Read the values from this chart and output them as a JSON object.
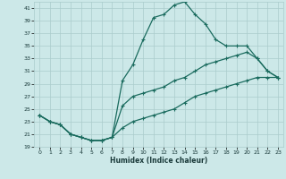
{
  "title": "",
  "xlabel": "Humidex (Indice chaleur)",
  "xlim": [
    -0.5,
    23.5
  ],
  "ylim": [
    19,
    42
  ],
  "xticks": [
    0,
    1,
    2,
    3,
    4,
    5,
    6,
    7,
    8,
    9,
    10,
    11,
    12,
    13,
    14,
    15,
    16,
    17,
    18,
    19,
    20,
    21,
    22,
    23
  ],
  "yticks": [
    19,
    21,
    23,
    25,
    27,
    29,
    31,
    33,
    35,
    37,
    39,
    41
  ],
  "bg_color": "#cce8e8",
  "grid_color": "#aacccc",
  "line_color": "#1a6b5e",
  "line1_x": [
    0,
    1,
    2,
    3,
    4,
    5,
    6,
    7,
    8,
    9,
    10,
    11,
    12,
    13,
    14,
    15,
    16,
    17,
    18,
    19,
    20,
    21,
    22,
    23
  ],
  "line1_y": [
    24,
    23,
    22.5,
    21,
    20.5,
    20,
    20,
    20.5,
    29.5,
    32,
    36,
    39.5,
    40,
    41.5,
    42,
    40,
    38.5,
    36,
    35,
    35,
    35,
    33,
    31,
    30
  ],
  "line2_x": [
    0,
    1,
    2,
    3,
    4,
    5,
    6,
    7,
    8,
    9,
    10,
    11,
    12,
    13,
    14,
    15,
    16,
    17,
    18,
    19,
    20,
    21,
    22,
    23
  ],
  "line2_y": [
    24,
    23,
    22.5,
    21,
    20.5,
    20,
    20,
    20.5,
    25.5,
    27,
    27.5,
    28,
    28.5,
    29.5,
    30,
    31,
    32,
    32.5,
    33,
    33.5,
    34,
    33,
    31,
    30
  ],
  "line3_x": [
    0,
    1,
    2,
    3,
    4,
    5,
    6,
    7,
    8,
    9,
    10,
    11,
    12,
    13,
    14,
    15,
    16,
    17,
    18,
    19,
    20,
    21,
    22,
    23
  ],
  "line3_y": [
    24,
    23,
    22.5,
    21,
    20.5,
    20,
    20,
    20.5,
    22,
    23,
    23.5,
    24,
    24.5,
    25,
    26,
    27,
    27.5,
    28,
    28.5,
    29,
    29.5,
    30,
    30,
    30
  ]
}
